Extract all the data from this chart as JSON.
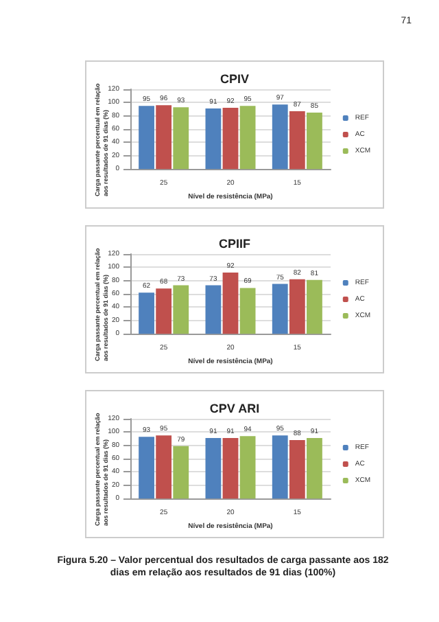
{
  "chart_data": [
    {
      "type": "bar",
      "title": "CPIV",
      "xlabel": "Nível de resistência (MPa)",
      "ylabel": "Carga passante percentual em relação aos resultados de 91 dias (%)",
      "categories": [
        "25",
        "20",
        "15"
      ],
      "series": [
        {
          "name": "REF",
          "color": "#4f81bd",
          "values": [
            95,
            91,
            97
          ]
        },
        {
          "name": "AC",
          "color": "#c0504d",
          "values": [
            96,
            92,
            87
          ]
        },
        {
          "name": "XCM",
          "color": "#9bbb59",
          "values": [
            93,
            95,
            85
          ]
        }
      ],
      "ylim": [
        0,
        120
      ],
      "yticks": [
        0,
        20,
        40,
        60,
        80,
        100,
        120
      ],
      "grid": "y",
      "legend": "right",
      "data_labels": true,
      "annotations": [
        "71"
      ]
    },
    {
      "type": "bar",
      "title": "CPIIF",
      "xlabel": "Nível de resistência (MPa)",
      "ylabel": "Carga passante percentual em relação aos resultados de 91 dias (%)",
      "categories": [
        "25",
        "20",
        "15"
      ],
      "series": [
        {
          "name": "REF",
          "color": "#4f81bd",
          "values": [
            62,
            73,
            75
          ]
        },
        {
          "name": "AC",
          "color": "#c0504d",
          "values": [
            68,
            92,
            82
          ]
        },
        {
          "name": "XCM",
          "color": "#9bbb59",
          "values": [
            73,
            69,
            81
          ]
        }
      ],
      "ylim": [
        0,
        120
      ],
      "yticks": [
        0,
        20,
        40,
        60,
        80,
        100,
        120
      ],
      "grid": "y",
      "legend": "right",
      "data_labels": true
    },
    {
      "type": "bar",
      "title": "CPV ARI",
      "xlabel": "Nível de resistência (MPa)",
      "ylabel": "Carga passante percentual em relação aos resultados de 91 dias (%)",
      "categories": [
        "25",
        "20",
        "15"
      ],
      "series": [
        {
          "name": "REF",
          "color": "#4f81bd",
          "values": [
            93,
            91,
            95
          ]
        },
        {
          "name": "AC",
          "color": "#c0504d",
          "values": [
            95,
            91,
            88
          ]
        },
        {
          "name": "XCM",
          "color": "#9bbb59",
          "values": [
            79,
            94,
            91
          ]
        }
      ],
      "ylim": [
        0,
        120
      ],
      "yticks": [
        0,
        20,
        40,
        60,
        80,
        100,
        120
      ],
      "grid": "y",
      "legend": "right",
      "data_labels": true,
      "annotations": [
        "Figura 5.20 – Valor percentual dos resultados de carga passante aos 182 dias em relação aos resultados de 91 dias (100%)"
      ]
    }
  ]
}
